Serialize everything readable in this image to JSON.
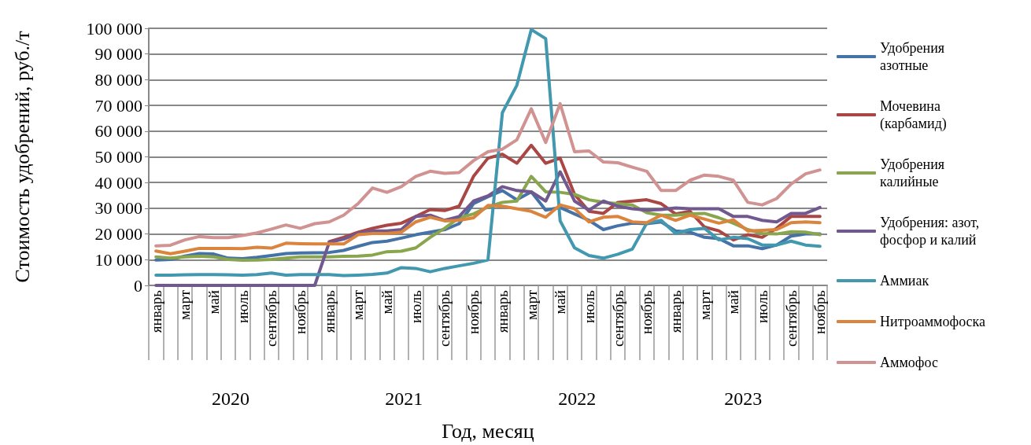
{
  "chart_data": {
    "type": "line",
    "xlabel": "Год, месяц",
    "ylabel": "Стоимость удобрений, руб./т",
    "categories": [
      "январь",
      null,
      "март",
      null,
      "май",
      null,
      "июль",
      null,
      "сентябрь",
      null,
      "ноябрь",
      null,
      "январь",
      null,
      "март",
      null,
      "май",
      null,
      "июль",
      null,
      "сентябрь",
      null,
      "ноябрь",
      null,
      "январь",
      null,
      "март",
      null,
      "май",
      null,
      "июль",
      null,
      "сентябрь",
      null,
      "ноябрь",
      null,
      "январь",
      null,
      "март",
      null,
      "май",
      null,
      "июль",
      null,
      "сентябрь",
      null,
      "ноябрь"
    ],
    "annotations": [
      "2020",
      "2021",
      "2022",
      "2023"
    ],
    "ylim": [
      0,
      100000
    ],
    "yticks": [
      {
        "value": 0,
        "label": "0"
      },
      {
        "value": 10000,
        "label": "10 000"
      },
      {
        "value": 20000,
        "label": "20 000"
      },
      {
        "value": 30000,
        "label": "30 000"
      },
      {
        "value": 40000,
        "label": "40 000"
      },
      {
        "value": 50000,
        "label": "50 000"
      },
      {
        "value": 60000,
        "label": "60 000"
      },
      {
        "value": 70000,
        "label": "70 000"
      },
      {
        "value": 80000,
        "label": "80 000"
      },
      {
        "value": 90000,
        "label": "90 000"
      },
      {
        "value": 100000,
        "label": "100 000"
      }
    ],
    "grid": "y",
    "legend": "right",
    "marker": "none",
    "line_style": "solid",
    "series": [
      {
        "name": "Удобрения азотные",
        "color": "#4572a7",
        "values": [
          9900,
          10100,
          11400,
          12400,
          12200,
          10600,
          10400,
          10900,
          11600,
          12400,
          12600,
          12700,
          12800,
          13600,
          15200,
          16700,
          17200,
          18400,
          19700,
          20700,
          21700,
          24000,
          31800,
          34500,
          36900,
          33300,
          36400,
          29300,
          30300,
          27800,
          25300,
          21700,
          23200,
          24200,
          24000,
          24700,
          21200,
          20700,
          18700,
          18200,
          15400,
          15400,
          14300,
          15700,
          19200,
          20000,
          20000
        ]
      },
      {
        "name": "Мочевина (карбамид)",
        "color": "#aa4643",
        "values": [
          null,
          null,
          null,
          null,
          null,
          null,
          null,
          null,
          null,
          null,
          null,
          null,
          17000,
          18700,
          20700,
          22200,
          23400,
          24200,
          26800,
          29500,
          29100,
          30800,
          42400,
          49500,
          51000,
          47500,
          54500,
          47500,
          49500,
          35400,
          28800,
          28000,
          32300,
          32800,
          33300,
          31800,
          27800,
          28800,
          22700,
          21200,
          17700,
          19700,
          18700,
          22200,
          26800,
          26800,
          26800
        ]
      },
      {
        "name": "Удобрения калийные",
        "color": "#89a54e",
        "values": [
          11100,
          10600,
          11100,
          11300,
          11100,
          10100,
          9800,
          9900,
          10100,
          10600,
          11100,
          11100,
          11100,
          11300,
          11400,
          11800,
          13100,
          13300,
          14600,
          18700,
          22200,
          26300,
          27800,
          30500,
          32300,
          32800,
          42400,
          36400,
          36200,
          35400,
          33300,
          32300,
          31800,
          31300,
          28300,
          27300,
          27300,
          27800,
          28000,
          26300,
          24200,
          21700,
          20200,
          20000,
          20900,
          20700,
          19700
        ]
      },
      {
        "name": "Удобрения: азот, фосфор и калий",
        "color": "#71588f",
        "values": [
          0,
          0,
          0,
          0,
          0,
          0,
          0,
          0,
          0,
          0,
          0,
          0,
          16700,
          18000,
          20200,
          21200,
          21200,
          21700,
          26800,
          27300,
          25300,
          26800,
          32800,
          34800,
          38400,
          36900,
          36400,
          32800,
          44200,
          32800,
          29300,
          32800,
          30800,
          29800,
          29300,
          29500,
          30100,
          29800,
          29800,
          29800,
          26800,
          26800,
          25300,
          24700,
          28000,
          28000,
          30300
        ]
      },
      {
        "name": "Аммиак",
        "color": "#4198af",
        "values": [
          4000,
          4000,
          4100,
          4200,
          4200,
          4100,
          4000,
          4200,
          4800,
          4000,
          4200,
          4200,
          4200,
          3800,
          4000,
          4300,
          4800,
          6900,
          6600,
          5300,
          6600,
          7600,
          8600,
          9900,
          67200,
          77800,
          99500,
          96000,
          25100,
          14600,
          11600,
          10600,
          12100,
          14100,
          24200,
          25300,
          20200,
          21700,
          22200,
          17700,
          18700,
          18200,
          15700,
          15700,
          17200,
          15700,
          15200
        ]
      },
      {
        "name": "Нитроаммофоска",
        "color": "#db843d",
        "values": [
          13400,
          12300,
          13300,
          14400,
          14400,
          14400,
          14300,
          14800,
          14500,
          16400,
          16200,
          16100,
          16100,
          16100,
          19700,
          20200,
          20200,
          20700,
          24700,
          26500,
          25100,
          25300,
          26300,
          31100,
          30800,
          29800,
          28800,
          26500,
          31300,
          29800,
          24700,
          26500,
          26800,
          24700,
          24400,
          27300,
          25300,
          27300,
          25800,
          24200,
          25500,
          21200,
          21400,
          21700,
          24400,
          24700,
          24400
        ]
      },
      {
        "name": "Аммофос",
        "color": "#d09392",
        "values": [
          15400,
          15600,
          17700,
          19000,
          18600,
          18600,
          19400,
          20400,
          21900,
          23500,
          22200,
          24000,
          24700,
          27300,
          31800,
          37900,
          36200,
          38400,
          42400,
          44400,
          43600,
          43900,
          48500,
          52000,
          53000,
          56600,
          68700,
          55600,
          70700,
          52000,
          52300,
          48000,
          47700,
          46000,
          44400,
          36900,
          36900,
          40900,
          42900,
          42400,
          40900,
          32300,
          31300,
          33800,
          39400,
          43400,
          44900
        ]
      }
    ]
  }
}
